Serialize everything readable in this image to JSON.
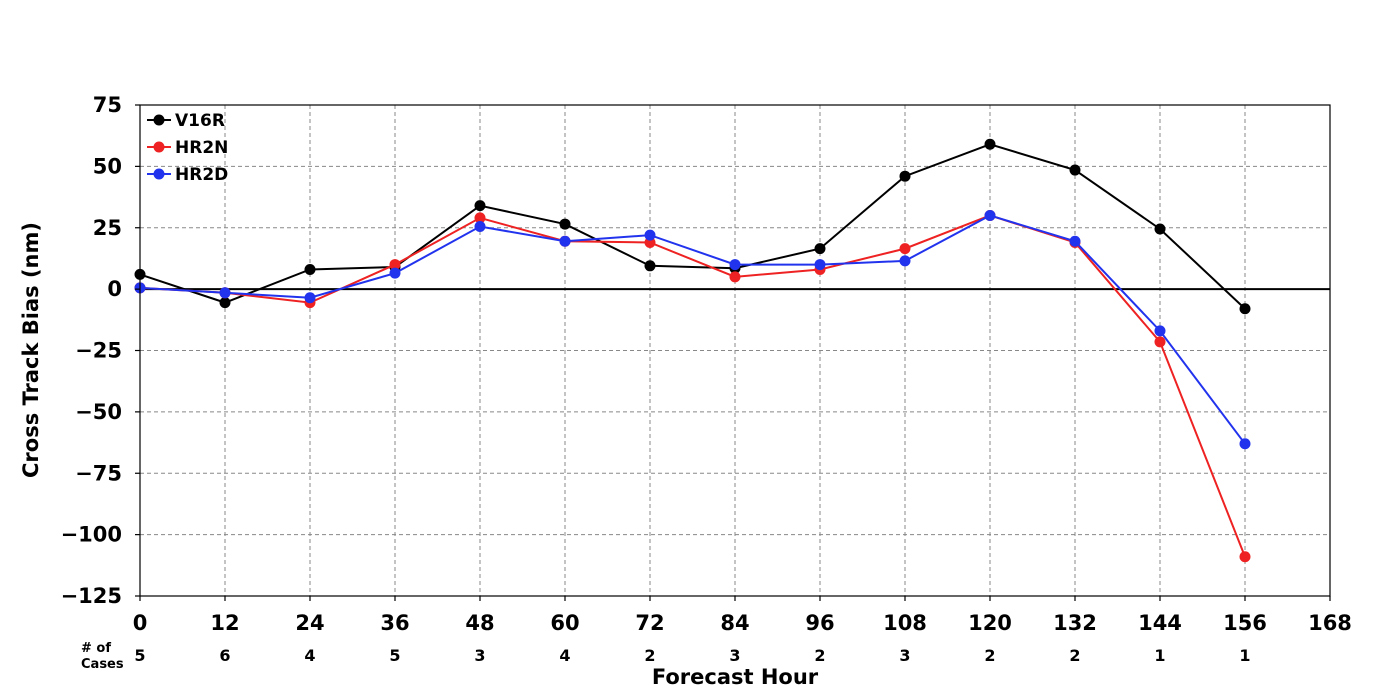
{
  "chart_data": {
    "type": "line",
    "xlabel": "Forecast Hour",
    "ylabel": "Cross Track Bias (nm)",
    "xlim": [
      0,
      168
    ],
    "ylim": [
      -125,
      75
    ],
    "xticks": [
      "0",
      "12",
      "24",
      "36",
      "48",
      "60",
      "72",
      "84",
      "96",
      "108",
      "120",
      "132",
      "144",
      "156",
      "168"
    ],
    "yticks": [
      "75",
      "50",
      "25",
      "0",
      "−25",
      "−50",
      "−75",
      "−100",
      "−125"
    ],
    "grid": true,
    "legend_position": "top-left",
    "cases_title": "# of\nCases",
    "cases": [
      "5",
      "6",
      "4",
      "5",
      "3",
      "4",
      "2",
      "3",
      "2",
      "3",
      "2",
      "2",
      "1",
      "1"
    ],
    "x": [
      0,
      12,
      24,
      36,
      48,
      60,
      72,
      84,
      96,
      108,
      120,
      132,
      144,
      156
    ],
    "series": [
      {
        "name": "V16R",
        "color": "#000000",
        "values": [
          6,
          -5.5,
          8,
          9,
          34,
          26.5,
          9.5,
          8.5,
          16.5,
          46,
          59,
          48.5,
          24.5,
          -8
        ]
      },
      {
        "name": "HR2N",
        "color": "#ee2222",
        "values": [
          0.5,
          -1.5,
          -5.5,
          10,
          29,
          19.5,
          19,
          5,
          8,
          16.5,
          30,
          19,
          -21.5,
          -109
        ]
      },
      {
        "name": "HR2D",
        "color": "#2233ee",
        "values": [
          0.5,
          -1.5,
          -3.5,
          6.5,
          25.5,
          19.5,
          22,
          10,
          10,
          11.5,
          30,
          19.5,
          -17,
          -63
        ]
      }
    ]
  }
}
